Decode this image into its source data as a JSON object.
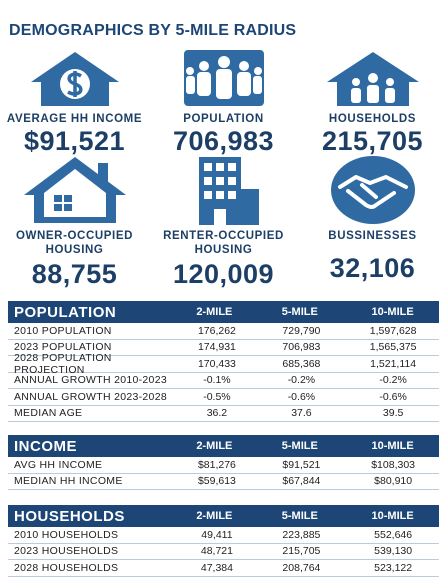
{
  "header": {
    "title": "DEMOGRAPHICS BY 5-MILE RADIUS"
  },
  "stats": [
    {
      "label": "AVERAGE HH INCOME",
      "value": "$91,521"
    },
    {
      "label": "POPULATION",
      "value": "706,983"
    },
    {
      "label": "HOUSEHOLDS",
      "value": "215,705"
    },
    {
      "label": "OWNER-OCCUPIED HOUSING",
      "value": "88,755"
    },
    {
      "label": "RENTER-OCCUPIED HOUSING",
      "value": "120,009"
    },
    {
      "label": "BUSSINESSES",
      "value": "32,106"
    }
  ],
  "tables": [
    {
      "title": "POPULATION",
      "columns": [
        "2-MILE",
        "5-MILE",
        "10-MILE"
      ],
      "rows": [
        [
          "2010 POPULATION",
          "176,262",
          "729,790",
          "1,597,628"
        ],
        [
          "2023 POPULATION",
          "174,931",
          "706,983",
          "1,565,375"
        ],
        [
          "2028 POPULATION PROJECTION",
          "170,433",
          "685,368",
          "1,521,114"
        ],
        [
          "ANNUAL GROWTH 2010-2023",
          "-0.1%",
          "-0.2%",
          "-0.2%"
        ],
        [
          "ANNUAL GROWTH 2023-2028",
          "-0.5%",
          "-0.6%",
          "-0.6%"
        ],
        [
          "MEDIAN AGE",
          "36.2",
          "37.6",
          "39.5"
        ]
      ]
    },
    {
      "title": "INCOME",
      "columns": [
        "2-MILE",
        "5-MILE",
        "10-MILE"
      ],
      "rows": [
        [
          "AVG HH INCOME",
          "$81,276",
          "$91,521",
          "$108,303"
        ],
        [
          "MEDIAN HH INCOME",
          "$59,613",
          "$67,844",
          "$80,910"
        ]
      ]
    },
    {
      "title": "HOUSEHOLDS",
      "columns": [
        "2-MILE",
        "5-MILE",
        "10-MILE"
      ],
      "rows": [
        [
          "2010 HOUSEHOLDS",
          "49,411",
          "223,885",
          "552,646"
        ],
        [
          "2023 HOUSEHOLDS",
          "48,721",
          "215,705",
          "539,130"
        ],
        [
          "2028 HOUSEHOLDS",
          "47,384",
          "208,764",
          "523,122"
        ]
      ]
    }
  ]
}
